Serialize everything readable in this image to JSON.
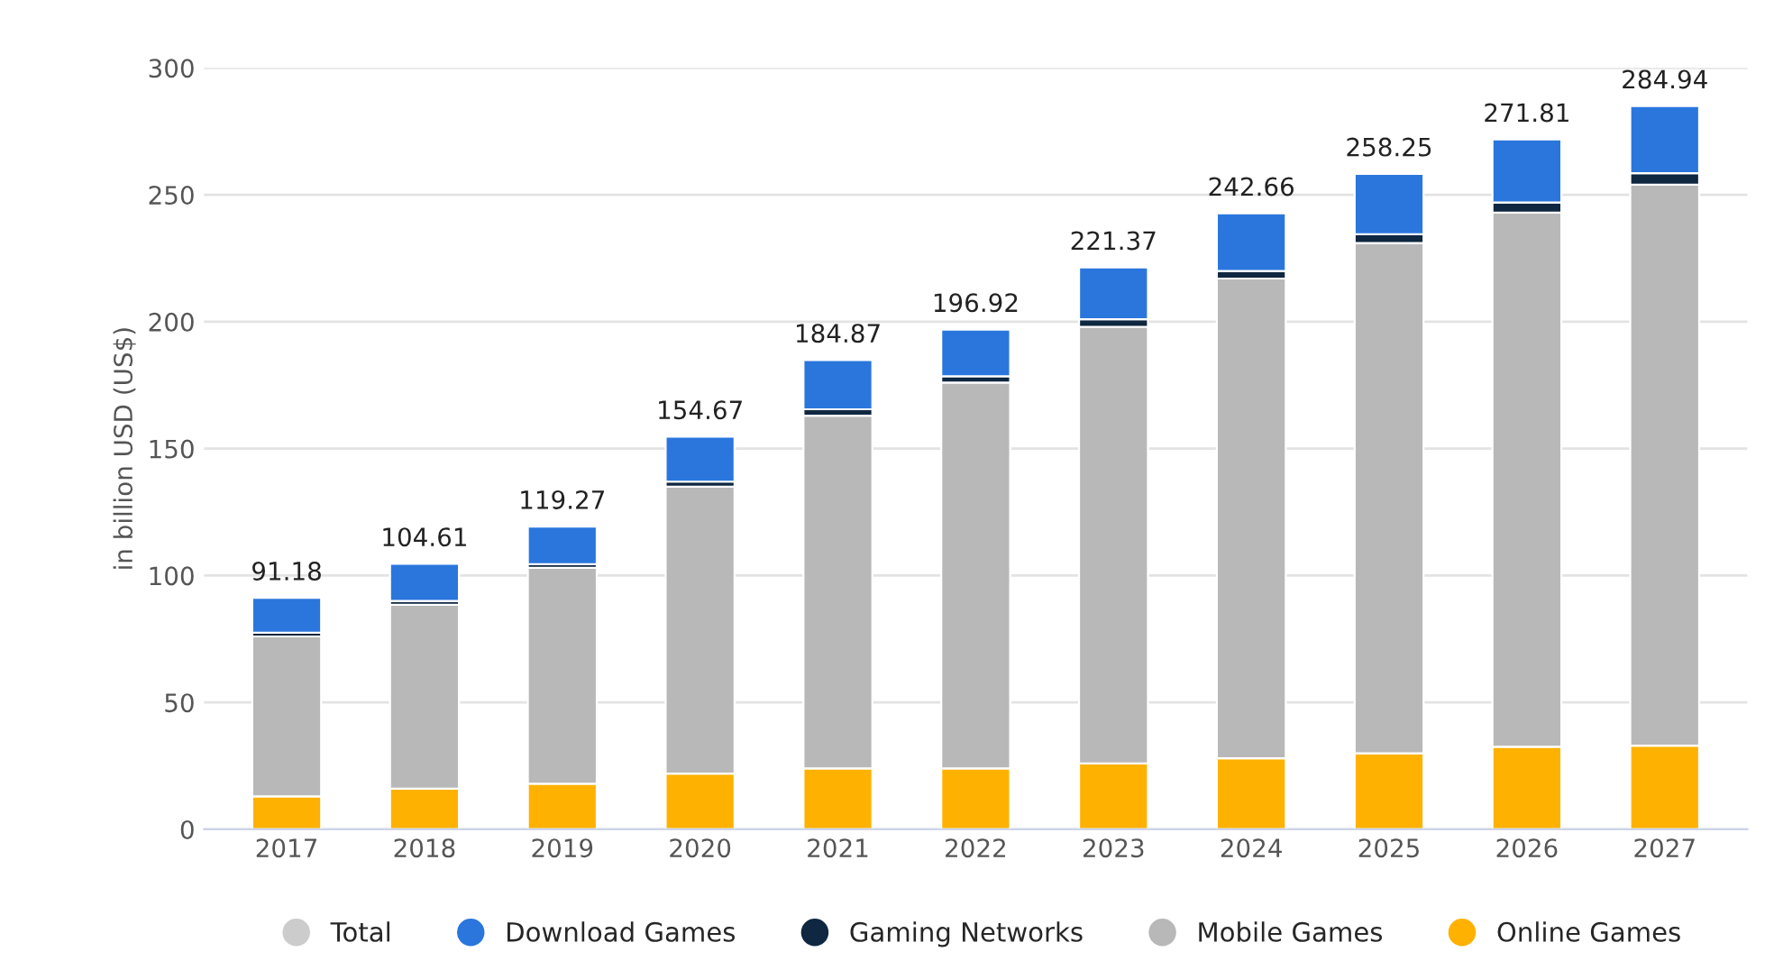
{
  "chart_data": {
    "type": "bar",
    "stacked": true,
    "ylabel": "in billion USD (US$)",
    "categories": [
      "2017",
      "2018",
      "2019",
      "2020",
      "2021",
      "2022",
      "2023",
      "2024",
      "2025",
      "2026",
      "2027"
    ],
    "series": [
      {
        "name": "Online Games",
        "color": "#ffb100",
        "values": [
          13,
          16,
          18,
          22,
          24,
          24,
          26,
          28,
          30,
          32.5,
          33
        ]
      },
      {
        "name": "Mobile Games",
        "color": "#b8b8b8",
        "values": [
          63,
          72.5,
          85,
          113,
          139,
          152,
          172,
          189,
          201,
          210.5,
          221
        ]
      },
      {
        "name": "Gaming Networks",
        "color": "#0f2740",
        "values": [
          1.5,
          1.5,
          1.5,
          2,
          2.5,
          2.5,
          3,
          3,
          3.5,
          4,
          4.5
        ]
      },
      {
        "name": "Download Games",
        "color": "#2a76dd",
        "values": [
          13.68,
          14.61,
          14.77,
          17.67,
          19.37,
          18.42,
          20.37,
          22.66,
          23.75,
          24.81,
          26.44
        ]
      },
      {
        "name": "Total",
        "color": "#cccccc",
        "values": [
          null,
          null,
          null,
          null,
          null,
          null,
          null,
          null,
          null,
          null,
          null
        ]
      }
    ],
    "totals": [
      "91.18",
      "104.61",
      "119.27",
      "154.67",
      "184.87",
      "196.92",
      "221.37",
      "242.66",
      "258.25",
      "271.81",
      "284.94"
    ],
    "ylim": [
      0,
      300
    ],
    "yticks": [
      0,
      50,
      100,
      150,
      200,
      250,
      300
    ],
    "grid": "y",
    "legend": "bottom"
  }
}
